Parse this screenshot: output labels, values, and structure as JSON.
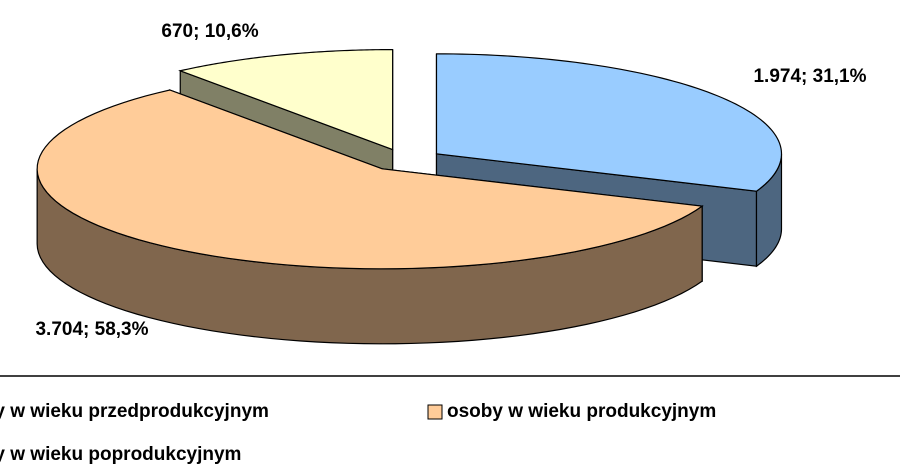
{
  "chart_data": {
    "type": "pie",
    "categories": [
      "osoby w wieku przedprodukcyjnym",
      "osoby w wieku produkcyjnym",
      "osoby w wieku poprodukcyjnym"
    ],
    "values": [
      1974,
      3704,
      670
    ],
    "value_labels": [
      "1.974; 31,1%",
      "3.704; 58,3%",
      "670; 10,6%"
    ],
    "colors": [
      "#99ccff",
      "#ffcc99",
      "#ffffcc"
    ]
  }
}
